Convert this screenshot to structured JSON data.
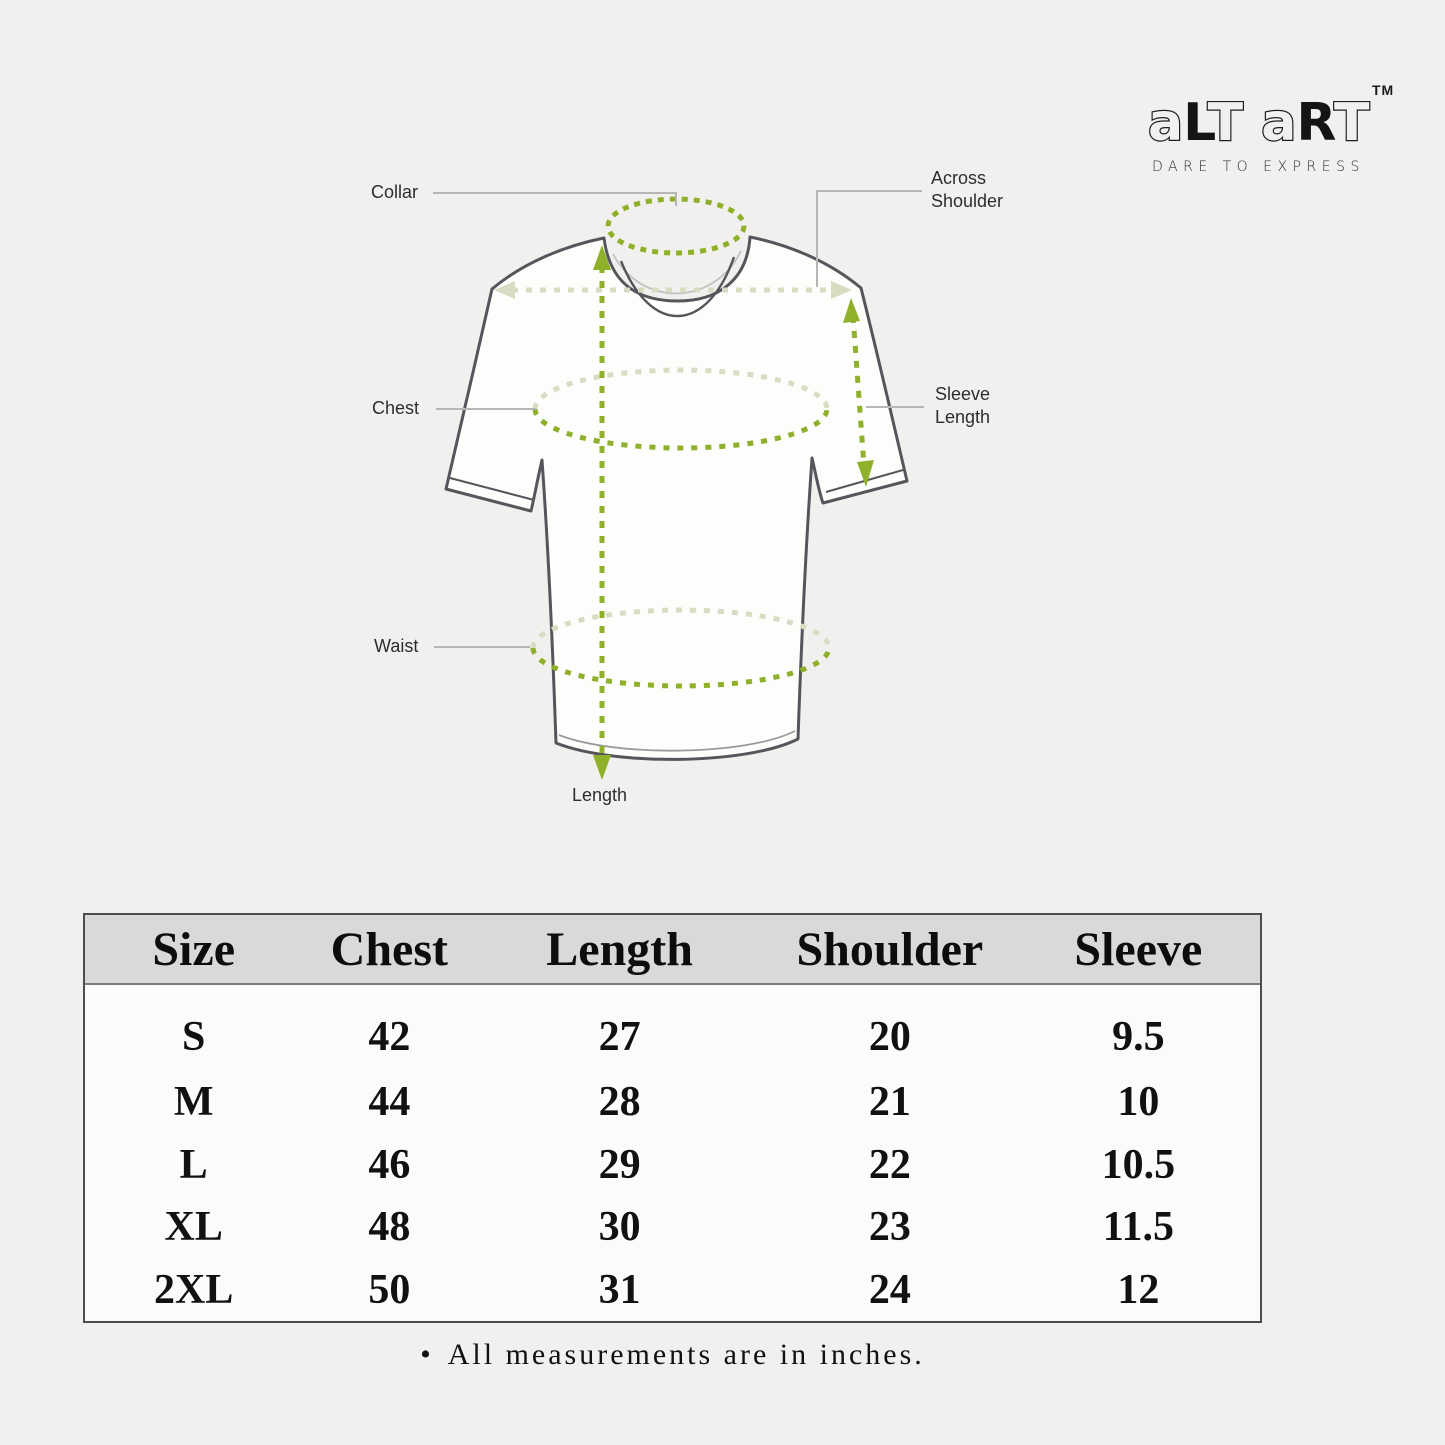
{
  "page": {
    "background": "#f1f0ee"
  },
  "logo": {
    "tm": "TM",
    "tagline": "DARE TO EXPRESS",
    "groups": [
      {
        "letters": [
          {
            "ch": "a",
            "style": "outline"
          },
          {
            "ch": "L",
            "style": "solid"
          },
          {
            "ch": "T",
            "style": "outline"
          }
        ]
      },
      {
        "letters": [
          {
            "ch": "a",
            "style": "outline"
          },
          {
            "ch": "R",
            "style": "solid"
          },
          {
            "ch": "T",
            "style": "outline"
          }
        ]
      }
    ]
  },
  "diagram": {
    "labels": {
      "collar": "Collar",
      "across_shoulder": "Across Shoulder",
      "chest": "Chest",
      "sleeve_length": "Sleeve Length",
      "waist": "Waist",
      "length": "Length"
    },
    "colors": {
      "measure_green": "#8fb02a",
      "measure_pale": "#d9dcc2",
      "shirt_outline": "#55565b",
      "leader_gray": "#b6b6b6"
    }
  },
  "table": {
    "columns": [
      "Size",
      "Chest",
      "Length",
      "Shoulder",
      "Sleeve"
    ],
    "rows": [
      [
        "S",
        "42",
        "27",
        "20",
        "9.5"
      ],
      [
        "M",
        "44",
        "28",
        "21",
        "10"
      ],
      [
        "L",
        "46",
        "29",
        "22",
        "10.5"
      ],
      [
        "XL",
        "48",
        "30",
        "23",
        "11.5"
      ],
      [
        "2XL",
        "50",
        "31",
        "24",
        "12"
      ]
    ],
    "header_bg": "#d9d9d9"
  },
  "footer": {
    "bullet": "•",
    "note": "All measurements are in inches."
  }
}
